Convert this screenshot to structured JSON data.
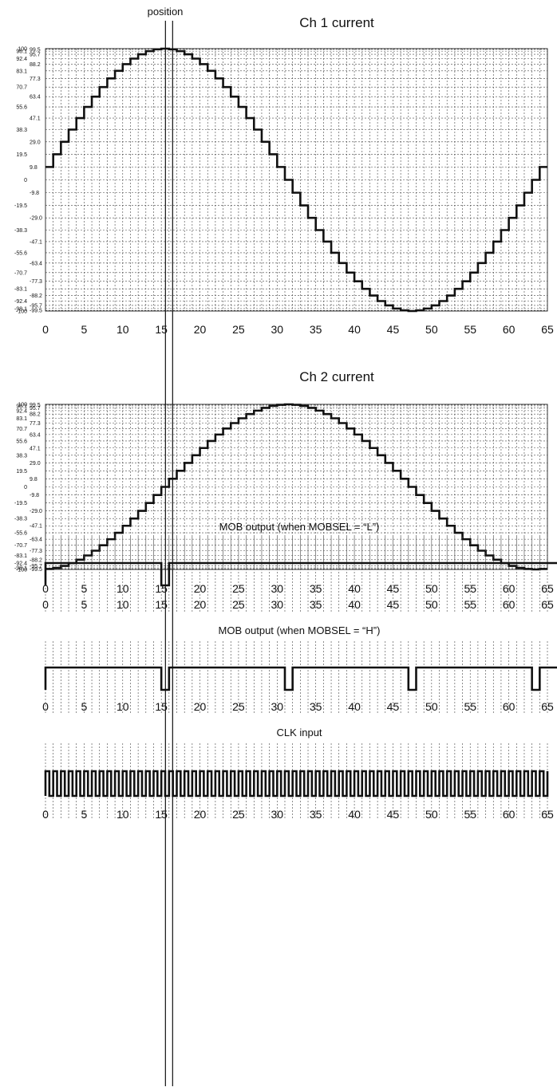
{
  "position_label": "position",
  "position_index": 16,
  "chart_data": [
    {
      "type": "line",
      "title": "Ch 1 current",
      "step": true,
      "x_ticks": [
        0,
        5,
        10,
        15,
        20,
        25,
        30,
        35,
        40,
        45,
        50,
        55,
        60,
        65
      ],
      "y_ticks": [
        100,
        98.1,
        92.4,
        83.1,
        70.7,
        55.6,
        38.3,
        19.5,
        0,
        -19.5,
        -38.3,
        -55.6,
        -70.7,
        -83.1,
        -92.4,
        -98.1,
        -100
      ],
      "y_ticks_right": [
        99.5,
        95.7,
        88.2,
        77.3,
        63.4,
        47.1,
        29.0,
        9.8,
        -9.8,
        -29.0,
        -47.1,
        -63.4,
        -77.3,
        -88.2,
        -95.7,
        -99.5
      ],
      "ylim": [
        -100,
        100
      ],
      "xlim": [
        0,
        65
      ],
      "x": [
        0,
        1,
        2,
        3,
        4,
        5,
        6,
        7,
        8,
        9,
        10,
        11,
        12,
        13,
        14,
        15,
        16,
        17,
        18,
        19,
        20,
        21,
        22,
        23,
        24,
        25,
        26,
        27,
        28,
        29,
        30,
        31,
        32,
        33,
        34,
        35,
        36,
        37,
        38,
        39,
        40,
        41,
        42,
        43,
        44,
        45,
        46,
        47,
        48,
        49,
        50,
        51,
        52,
        53,
        54,
        55,
        56,
        57,
        58,
        59,
        60,
        61,
        62,
        63,
        64
      ],
      "values": [
        9.8,
        19.5,
        29.0,
        38.3,
        47.1,
        55.6,
        63.4,
        70.7,
        77.3,
        83.1,
        88.2,
        92.4,
        95.7,
        98.1,
        99.5,
        100,
        99.5,
        98.1,
        95.7,
        92.4,
        88.2,
        83.1,
        77.3,
        70.7,
        63.4,
        55.6,
        47.1,
        38.3,
        29.0,
        19.5,
        9.8,
        0,
        -9.8,
        -19.5,
        -29.0,
        -38.3,
        -47.1,
        -55.6,
        -63.4,
        -70.7,
        -77.3,
        -83.1,
        -88.2,
        -92.4,
        -95.7,
        -98.1,
        -99.5,
        -100,
        -99.5,
        -98.1,
        -95.7,
        -92.4,
        -88.2,
        -83.1,
        -77.3,
        -70.7,
        -63.4,
        -55.6,
        -47.1,
        -38.3,
        -29.0,
        -19.5,
        -9.8,
        0,
        9.8
      ]
    },
    {
      "type": "line",
      "title": "Ch 2 current",
      "step": true,
      "x_ticks": [
        0,
        5,
        10,
        15,
        20,
        25,
        30,
        35,
        40,
        45,
        50,
        55,
        60,
        65
      ],
      "y_ticks": [
        100,
        98.1,
        92.4,
        83.1,
        70.7,
        55.6,
        38.3,
        19.5,
        0,
        -19.5,
        -38.3,
        -55.6,
        -70.7,
        -83.1,
        -92.4,
        -98.1,
        -100
      ],
      "y_ticks_right": [
        99.5,
        95.7,
        88.2,
        77.3,
        63.4,
        47.1,
        29.0,
        9.8,
        -9.8,
        -29.0,
        -47.1,
        -63.4,
        -77.3,
        -88.2,
        -95.7,
        -99.5
      ],
      "ylim": [
        -100,
        100
      ],
      "xlim": [
        0,
        65
      ],
      "x": [
        0,
        1,
        2,
        3,
        4,
        5,
        6,
        7,
        8,
        9,
        10,
        11,
        12,
        13,
        14,
        15,
        16,
        17,
        18,
        19,
        20,
        21,
        22,
        23,
        24,
        25,
        26,
        27,
        28,
        29,
        30,
        31,
        32,
        33,
        34,
        35,
        36,
        37,
        38,
        39,
        40,
        41,
        42,
        43,
        44,
        45,
        46,
        47,
        48,
        49,
        50,
        51,
        52,
        53,
        54,
        55,
        56,
        57,
        58,
        59,
        60,
        61,
        62,
        63,
        64
      ],
      "values": [
        -99.5,
        -98.1,
        -95.7,
        -92.4,
        -88.2,
        -83.1,
        -77.3,
        -70.7,
        -63.4,
        -55.6,
        -47.1,
        -38.3,
        -29.0,
        -19.5,
        -9.8,
        0,
        9.8,
        19.5,
        29.0,
        38.3,
        47.1,
        55.6,
        63.4,
        70.7,
        77.3,
        83.1,
        88.2,
        92.4,
        95.7,
        98.1,
        99.5,
        100,
        99.5,
        98.1,
        95.7,
        92.4,
        88.2,
        83.1,
        77.3,
        70.7,
        63.4,
        55.6,
        47.1,
        38.3,
        29.0,
        19.5,
        9.8,
        0,
        -9.8,
        -19.5,
        -29.0,
        -38.3,
        -47.1,
        -55.6,
        -63.4,
        -70.7,
        -77.3,
        -83.1,
        -88.2,
        -92.4,
        -95.7,
        -98.1,
        -99.5,
        -100,
        -99.5
      ]
    },
    {
      "type": "line",
      "title": "MOB output (when MOBSEL = “L”)",
      "step": true,
      "x_ticks": [
        0,
        5,
        10,
        15,
        20,
        25,
        30,
        35,
        40,
        45,
        50,
        55,
        60,
        65
      ],
      "xlim": [
        0,
        65
      ],
      "ylim": [
        0,
        1
      ],
      "x": [
        0,
        15,
        16,
        65
      ],
      "values": [
        1,
        0,
        1,
        1
      ]
    },
    {
      "type": "line",
      "title": "MOB output (when MOBSEL = “H”)",
      "step": true,
      "x_ticks": [
        0,
        5,
        10,
        15,
        20,
        25,
        30,
        35,
        40,
        45,
        50,
        55,
        60,
        65
      ],
      "xlim": [
        0,
        65
      ],
      "ylim": [
        0,
        1
      ],
      "x": [
        0,
        15,
        16,
        31,
        32,
        47,
        48,
        63,
        64,
        65
      ],
      "values": [
        1,
        0,
        1,
        0,
        1,
        0,
        1,
        0,
        1,
        1
      ]
    },
    {
      "type": "line",
      "title": "CLK input",
      "step": true,
      "periodic": true,
      "period": 1,
      "duty": 0.5,
      "x_ticks": [
        0,
        5,
        10,
        15,
        20,
        25,
        30,
        35,
        40,
        45,
        50,
        55,
        60,
        65
      ],
      "xlim": [
        0,
        65
      ],
      "ylim": [
        0,
        1
      ]
    }
  ]
}
